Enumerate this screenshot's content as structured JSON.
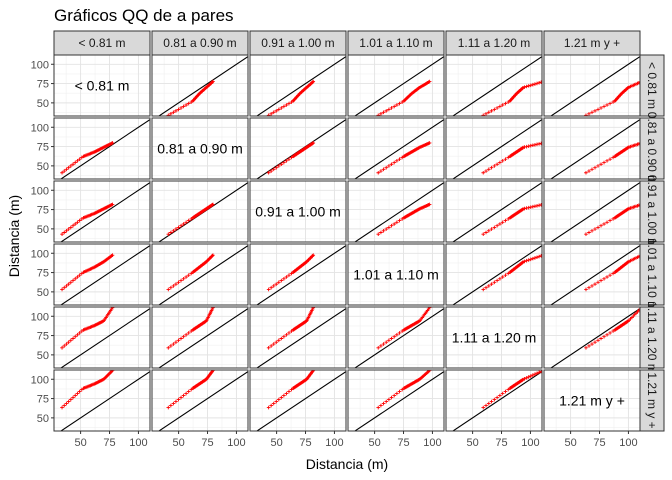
{
  "chart_data": {
    "type": "scatter",
    "title": "Gráficos QQ de a pares",
    "xlabel": "Distancia (m)",
    "ylabel": "Distancia (m)",
    "categories": [
      "< 0.81 m",
      "0.81 a 0.90 m",
      "0.91 a 1.00 m",
      "1.01 a 1.10 m",
      "1.11 a 1.20 m",
      "1.21 m y +"
    ],
    "xlim": [
      27,
      110
    ],
    "ylim": [
      33,
      112
    ],
    "x_ticks": [
      50,
      75,
      100
    ],
    "y_ticks": [
      50,
      75,
      100
    ],
    "x_tick_labels": [
      "50",
      "75",
      "100"
    ],
    "y_tick_labels": [
      "50",
      "75",
      "100"
    ],
    "reference_line": "y = x",
    "grid": true,
    "point_color": "#ff0000",
    "line_color": "#000000",
    "strip_color": "#d9d9d9",
    "quantile_ranges": [
      {
        "group": "< 0.81 m",
        "min": 33,
        "q1": 52,
        "median": 62,
        "q3": 70,
        "max": 78
      },
      {
        "group": "0.81 a 0.90 m",
        "min": 40,
        "q1": 62,
        "median": 68,
        "q3": 74,
        "max": 80
      },
      {
        "group": "0.91 a 1.00 m",
        "min": 42,
        "q1": 64,
        "median": 70,
        "q3": 76,
        "max": 82
      },
      {
        "group": "1.01 a 1.10 m",
        "min": 52,
        "q1": 75,
        "median": 82,
        "q3": 89,
        "max": 98
      },
      {
        "group": "1.11 a 1.20 m",
        "min": 58,
        "q1": 82,
        "median": 88,
        "q3": 94,
        "max": 112
      },
      {
        "group": "1.21 m y +",
        "min": 62,
        "q1": 88,
        "median": 94,
        "q3": 100,
        "max": 112
      }
    ]
  }
}
